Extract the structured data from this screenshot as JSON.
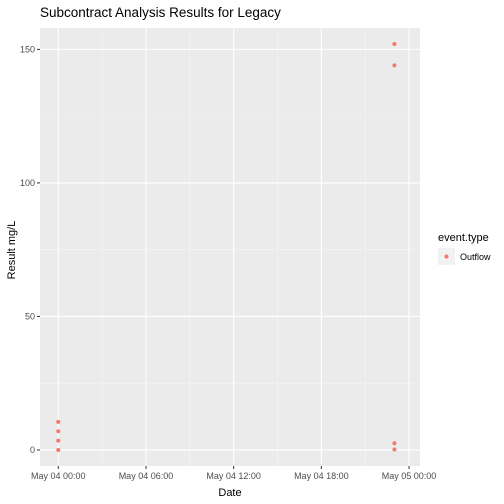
{
  "chart_data": {
    "type": "scatter",
    "title": "Subcontract Analysis Results for Legacy",
    "xlabel": "Date",
    "ylabel": "Result mg/L",
    "x_ticks": [
      "May 04 00:00",
      "May 04 06:00",
      "May 04 12:00",
      "May 04 18:00",
      "May 05 00:00"
    ],
    "x_tick_hours": [
      0,
      6,
      12,
      18,
      24
    ],
    "xlim_hours": [
      -1.25,
      24.75
    ],
    "y_ticks": [
      0,
      50,
      100,
      150
    ],
    "ylim": [
      -6,
      158
    ],
    "grid": true,
    "legend": {
      "title": "event.type",
      "placement": "right"
    },
    "series": [
      {
        "name": "Outflow",
        "color": "#F8766D",
        "points": [
          {
            "x": "May 04 00:00",
            "y": 10.5
          },
          {
            "x": "May 04 00:00",
            "y": 7.0
          },
          {
            "x": "May 04 00:00",
            "y": 3.5
          },
          {
            "x": "May 04 00:00",
            "y": 0.0
          },
          {
            "x": "May 04 23:00",
            "y": 152.0
          },
          {
            "x": "May 04 23:00",
            "y": 144.0
          },
          {
            "x": "May 04 23:00",
            "y": 2.5
          },
          {
            "x": "May 04 23:00",
            "y": 0.2
          }
        ]
      }
    ]
  }
}
